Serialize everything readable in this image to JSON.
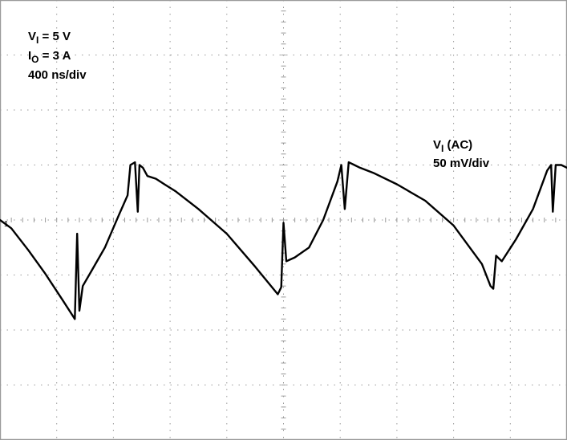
{
  "chart_data": {
    "type": "line",
    "annotations": {
      "input_voltage": {
        "symbol": "V",
        "subscript": "I",
        "rest": " = 5 V"
      },
      "output_current": {
        "symbol": "I",
        "subscript": "O",
        "rest": " = 3 A"
      },
      "timebase": "400 ns/div",
      "channel_name": {
        "symbol": "V",
        "subscript": "I",
        "rest": " (AC)"
      },
      "channel_scale": "50 mV/div"
    },
    "grid": true,
    "divisions": {
      "x": 10,
      "y": 8
    },
    "trace_color": "#000000",
    "grid_color": "#9a9a9a",
    "x_unit": "div (400 ns/div)",
    "y_unit": "div (50 mV/div), 0 = ground marker",
    "xlim": [
      0,
      10
    ],
    "ylim": [
      -4,
      4
    ],
    "series": [
      {
        "x": [
          0.0,
          0.2,
          0.5,
          0.8,
          1.1,
          1.32,
          1.36,
          1.4,
          1.46,
          1.6,
          1.85,
          2.1,
          2.25,
          2.3,
          2.38,
          2.43,
          2.46,
          2.52,
          2.6,
          2.75,
          2.9,
          3.1,
          3.5,
          4.0,
          4.5,
          4.9,
          4.96,
          5.0,
          5.05,
          5.2,
          5.45,
          5.7,
          5.95,
          6.02,
          6.08,
          6.15,
          6.25,
          6.35,
          6.6,
          7.0,
          7.5,
          8.0,
          8.5,
          8.65,
          8.7,
          8.75,
          8.85,
          9.1,
          9.4,
          9.65,
          9.72,
          9.75,
          9.8,
          9.9,
          10.0
        ],
        "y": [
          0.0,
          -0.15,
          -0.55,
          -0.98,
          -1.45,
          -1.8,
          -0.25,
          -1.65,
          -1.2,
          -0.95,
          -0.5,
          0.1,
          0.45,
          1.0,
          1.05,
          0.15,
          1.0,
          0.95,
          0.8,
          0.75,
          0.65,
          0.52,
          0.2,
          -0.25,
          -0.85,
          -1.35,
          -1.22,
          -0.05,
          -0.75,
          -0.68,
          -0.5,
          0.0,
          0.7,
          1.0,
          0.2,
          1.05,
          1.0,
          0.95,
          0.85,
          0.65,
          0.35,
          -0.1,
          -0.8,
          -1.2,
          -1.25,
          -0.65,
          -0.75,
          -0.35,
          0.2,
          0.9,
          1.0,
          0.15,
          1.0,
          1.0,
          0.95
        ]
      }
    ]
  }
}
